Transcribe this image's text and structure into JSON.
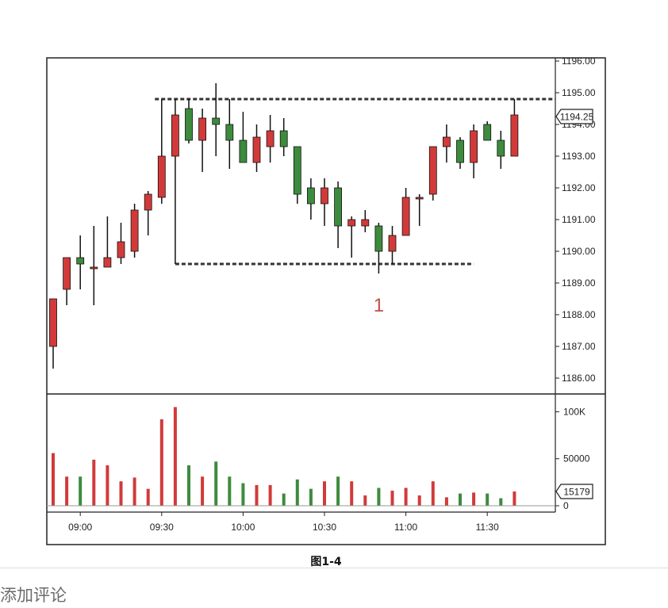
{
  "chart_data": {
    "type": "candlestick",
    "price_axis": {
      "range": [
        1185.5,
        1196.1
      ],
      "ticks": [
        "1196.00",
        "1195.00",
        "1194.00",
        "1193.00",
        "1192.00",
        "1191.00",
        "1190.00",
        "1189.00",
        "1188.00",
        "1187.00",
        "1186.00"
      ],
      "last_price_label": "1194.25",
      "last_price": 1194.25
    },
    "volume_axis": {
      "range": [
        0,
        113000
      ],
      "ticks": [
        {
          "label": "100K",
          "value": 100000
        },
        {
          "label": "50000",
          "value": 50000
        },
        {
          "label": "0",
          "value": 0
        }
      ],
      "last_volume_label": "15179",
      "last_volume": 15179
    },
    "time_ticks": [
      {
        "label": "09:00",
        "index": 2
      },
      {
        "label": "09:30",
        "index": 8
      },
      {
        "label": "10:00",
        "index": 14
      },
      {
        "label": "10:30",
        "index": 20
      },
      {
        "label": "11:00",
        "index": 26
      },
      {
        "label": "11:30",
        "index": 32
      }
    ],
    "candles": [
      {
        "o": 1187.0,
        "h": 1188.5,
        "l": 1186.3,
        "c": 1188.5,
        "v": 56000
      },
      {
        "o": 1188.8,
        "h": 1189.8,
        "l": 1188.3,
        "c": 1189.8,
        "v": 31000
      },
      {
        "o": 1189.8,
        "h": 1190.5,
        "l": 1188.8,
        "c": 1189.6,
        "v": 31000
      },
      {
        "o": 1189.5,
        "h": 1190.8,
        "l": 1188.3,
        "c": 1189.5,
        "v": 49000
      },
      {
        "o": 1189.5,
        "h": 1191.1,
        "l": 1189.5,
        "c": 1189.8,
        "v": 43000
      },
      {
        "o": 1189.8,
        "h": 1190.9,
        "l": 1189.6,
        "c": 1190.3,
        "v": 26000
      },
      {
        "o": 1190.0,
        "h": 1191.5,
        "l": 1189.8,
        "c": 1191.3,
        "v": 30000
      },
      {
        "o": 1191.3,
        "h": 1191.9,
        "l": 1190.5,
        "c": 1191.8,
        "v": 18000
      },
      {
        "o": 1191.7,
        "h": 1194.8,
        "l": 1191.5,
        "c": 1193.0,
        "v": 92000
      },
      {
        "o": 1193.0,
        "h": 1194.8,
        "l": 1189.6,
        "c": 1194.3,
        "v": 105000
      },
      {
        "o": 1194.5,
        "h": 1194.8,
        "l": 1193.4,
        "c": 1193.5,
        "v": 43000
      },
      {
        "o": 1193.5,
        "h": 1194.5,
        "l": 1192.5,
        "c": 1194.2,
        "v": 31000
      },
      {
        "o": 1194.2,
        "h": 1195.3,
        "l": 1193.0,
        "c": 1194.0,
        "v": 47000
      },
      {
        "o": 1194.0,
        "h": 1194.8,
        "l": 1192.6,
        "c": 1193.5,
        "v": 31000
      },
      {
        "o": 1193.5,
        "h": 1194.4,
        "l": 1192.8,
        "c": 1192.8,
        "v": 24000
      },
      {
        "o": 1192.8,
        "h": 1194.0,
        "l": 1192.5,
        "c": 1193.6,
        "v": 22000
      },
      {
        "o": 1193.3,
        "h": 1194.3,
        "l": 1192.8,
        "c": 1193.8,
        "v": 22000
      },
      {
        "o": 1193.8,
        "h": 1194.2,
        "l": 1193.0,
        "c": 1193.3,
        "v": 13000
      },
      {
        "o": 1193.3,
        "h": 1193.3,
        "l": 1191.5,
        "c": 1191.8,
        "v": 28000
      },
      {
        "o": 1192.0,
        "h": 1192.3,
        "l": 1191.0,
        "c": 1191.5,
        "v": 18000
      },
      {
        "o": 1191.5,
        "h": 1192.3,
        "l": 1190.8,
        "c": 1192.0,
        "v": 26000
      },
      {
        "o": 1192.0,
        "h": 1192.2,
        "l": 1190.1,
        "c": 1190.8,
        "v": 31000
      },
      {
        "o": 1190.8,
        "h": 1191.1,
        "l": 1189.8,
        "c": 1191.0,
        "v": 26000
      },
      {
        "o": 1190.8,
        "h": 1191.3,
        "l": 1190.6,
        "c": 1191.0,
        "v": 11000
      },
      {
        "o": 1190.8,
        "h": 1190.9,
        "l": 1189.3,
        "c": 1190.0,
        "v": 19000
      },
      {
        "o": 1190.0,
        "h": 1190.8,
        "l": 1189.6,
        "c": 1190.5,
        "v": 16000
      },
      {
        "o": 1190.5,
        "h": 1192.0,
        "l": 1190.5,
        "c": 1191.7,
        "v": 19000
      },
      {
        "o": 1191.7,
        "h": 1191.8,
        "l": 1190.8,
        "c": 1191.7,
        "v": 11000
      },
      {
        "o": 1191.8,
        "h": 1193.3,
        "l": 1191.6,
        "c": 1193.3,
        "v": 26000
      },
      {
        "o": 1193.3,
        "h": 1194.0,
        "l": 1192.8,
        "c": 1193.6,
        "v": 9000
      },
      {
        "o": 1193.5,
        "h": 1193.6,
        "l": 1192.6,
        "c": 1192.8,
        "v": 13000
      },
      {
        "o": 1192.8,
        "h": 1194.0,
        "l": 1192.3,
        "c": 1193.8,
        "v": 14000
      },
      {
        "o": 1194.0,
        "h": 1194.1,
        "l": 1193.5,
        "c": 1193.5,
        "v": 13000
      },
      {
        "o": 1193.5,
        "h": 1193.8,
        "l": 1192.6,
        "c": 1193.0,
        "v": 8000
      },
      {
        "o": 1193.0,
        "h": 1194.8,
        "l": 1193.0,
        "c": 1194.3,
        "v": 15179
      }
    ],
    "reference_lines": [
      {
        "price": 1194.8,
        "from_index": 7.5,
        "to_index": 38
      },
      {
        "price": 1189.6,
        "from_index": 9,
        "to_index": 31
      }
    ],
    "annotation": {
      "text": "1",
      "index": 24,
      "price": 1188.3
    },
    "caption": "图1-4",
    "colors": {
      "up": "#d23a3a",
      "down": "#3d8b3d",
      "dash": "#333333",
      "annotation": "#c0504d",
      "frame": "#222222"
    }
  },
  "footer": {
    "comment_label": "添加评论"
  }
}
